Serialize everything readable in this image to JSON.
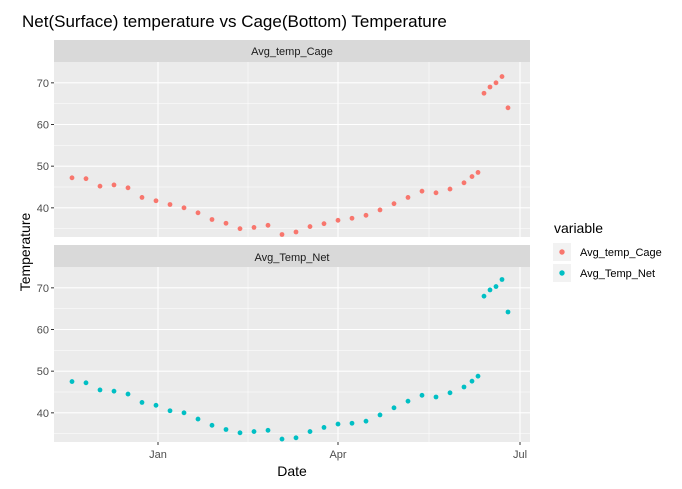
{
  "chart_data": {
    "type": "scatter",
    "title": "Net(Surface) temperature vs Cage(Bottom) Temperature",
    "xlabel": "Date",
    "ylabel": "Temperature",
    "x_ticks": [
      "Jan",
      "Apr",
      "Jul"
    ],
    "y_ticks": [
      40,
      50,
      60,
      70
    ],
    "ylim": [
      33,
      75
    ],
    "grid": true,
    "legend": {
      "title": "variable",
      "position": "right"
    },
    "facets": [
      "Avg_temp_Cage",
      "Avg_Temp_Net"
    ],
    "series": [
      {
        "name": "Avg_temp_Cage",
        "color": "#F8766D",
        "x": [
          "Nov 19",
          "Nov 26",
          "Dec 3",
          "Dec 10",
          "Dec 17",
          "Dec 24",
          "Dec 31",
          "Jan 7",
          "Jan 14",
          "Jan 21",
          "Jan 28",
          "Feb 4",
          "Feb 11",
          "Feb 18",
          "Feb 25",
          "Mar 4",
          "Mar 11",
          "Mar 18",
          "Mar 25",
          "Apr 1",
          "Apr 8",
          "Apr 15",
          "Apr 22",
          "Apr 29",
          "May 6",
          "May 13",
          "May 20",
          "May 27",
          "Jun 3",
          "Jun 7",
          "Jun 10",
          "Jun 13",
          "Jun 16",
          "Jun 19",
          "Jun 22",
          "Jun 25"
        ],
        "values": [
          47.2,
          47.0,
          45.2,
          45.5,
          44.8,
          42.5,
          41.7,
          40.8,
          40.0,
          38.8,
          37.2,
          36.3,
          35.0,
          35.3,
          35.8,
          33.6,
          34.2,
          35.5,
          36.2,
          37.0,
          37.5,
          38.2,
          39.5,
          41.0,
          42.5,
          44.0,
          43.6,
          44.5,
          46.0,
          47.5,
          48.5,
          67.5,
          69.0,
          70.0,
          71.5,
          64.0
        ]
      },
      {
        "name": "Avg_Temp_Net",
        "color": "#00BFC4",
        "x": [
          "Nov 19",
          "Nov 26",
          "Dec 3",
          "Dec 10",
          "Dec 17",
          "Dec 24",
          "Dec 31",
          "Jan 7",
          "Jan 14",
          "Jan 21",
          "Jan 28",
          "Feb 4",
          "Feb 11",
          "Feb 18",
          "Feb 25",
          "Mar 4",
          "Mar 11",
          "Mar 18",
          "Mar 25",
          "Apr 1",
          "Apr 8",
          "Apr 15",
          "Apr 22",
          "Apr 29",
          "May 6",
          "May 13",
          "May 20",
          "May 27",
          "Jun 3",
          "Jun 7",
          "Jun 10",
          "Jun 13",
          "Jun 16",
          "Jun 19",
          "Jun 22",
          "Jun 25"
        ],
        "values": [
          47.5,
          47.2,
          45.5,
          45.2,
          44.5,
          42.5,
          41.8,
          40.5,
          40.0,
          38.5,
          37.0,
          36.0,
          35.2,
          35.5,
          35.8,
          33.7,
          34.0,
          35.5,
          36.5,
          37.3,
          37.5,
          38.0,
          39.5,
          41.2,
          42.8,
          44.2,
          43.8,
          44.8,
          46.2,
          47.6,
          48.8,
          68.0,
          69.5,
          70.3,
          72.0,
          64.2
        ]
      }
    ]
  }
}
